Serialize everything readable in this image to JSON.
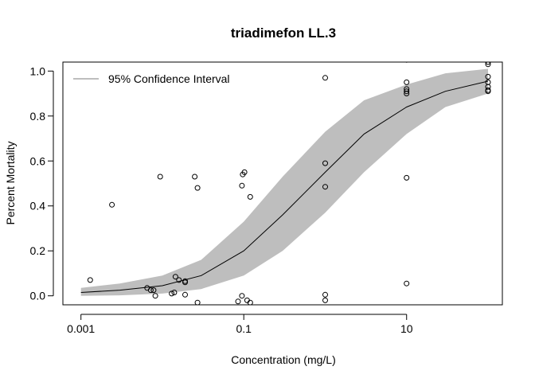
{
  "chart_data": {
    "type": "scatter",
    "title": "triadimefon LL.3",
    "xlabel": "Concentration (mg/L)",
    "ylabel": "Percent Mortality",
    "x_scale": "log10",
    "xlim": [
      0.0006,
      150
    ],
    "ylim": [
      -0.04,
      1.04
    ],
    "x_ticks": [
      0.001,
      0.1,
      10
    ],
    "x_tick_labels": [
      "0.001",
      "0.1",
      "10"
    ],
    "y_ticks": [
      0,
      0.2,
      0.4,
      0.6,
      0.8,
      1.0
    ],
    "y_tick_labels": [
      "0.0",
      "0.2",
      "0.4",
      "0.6",
      "0.8",
      "1.0"
    ],
    "legend": {
      "position": "top-left",
      "entries": [
        {
          "label": "95% Confidence Interval",
          "color": "#bebebe"
        }
      ]
    },
    "colors": {
      "band": "#bebebe",
      "curve": "#000000",
      "points": "#000000",
      "background": "#ffffff"
    },
    "points": [
      {
        "x": 0.0013,
        "y": 0.07
      },
      {
        "x": 0.0024,
        "y": 0.405
      },
      {
        "x": 0.0065,
        "y": 0.035
      },
      {
        "x": 0.0072,
        "y": 0.025
      },
      {
        "x": 0.0078,
        "y": 0.025
      },
      {
        "x": 0.0082,
        "y": 0.0
      },
      {
        "x": 0.0094,
        "y": 0.53
      },
      {
        "x": 0.013,
        "y": 0.01
      },
      {
        "x": 0.014,
        "y": 0.015
      },
      {
        "x": 0.0145,
        "y": 0.085
      },
      {
        "x": 0.016,
        "y": 0.07
      },
      {
        "x": 0.019,
        "y": 0.06
      },
      {
        "x": 0.019,
        "y": 0.065
      },
      {
        "x": 0.019,
        "y": 0.005
      },
      {
        "x": 0.025,
        "y": 0.53
      },
      {
        "x": 0.027,
        "y": 0.48
      },
      {
        "x": 0.027,
        "y": -0.03
      },
      {
        "x": 0.085,
        "y": -0.025
      },
      {
        "x": 0.095,
        "y": 0.0
      },
      {
        "x": 0.095,
        "y": 0.49
      },
      {
        "x": 0.097,
        "y": 0.54
      },
      {
        "x": 0.102,
        "y": 0.55
      },
      {
        "x": 0.11,
        "y": -0.02
      },
      {
        "x": 0.12,
        "y": 0.44
      },
      {
        "x": 0.12,
        "y": -0.03
      },
      {
        "x": 1.0,
        "y": 0.97
      },
      {
        "x": 1.0,
        "y": 0.59
      },
      {
        "x": 1.0,
        "y": 0.485
      },
      {
        "x": 1.0,
        "y": 0.005
      },
      {
        "x": 1.0,
        "y": -0.02
      },
      {
        "x": 10,
        "y": 1.05
      },
      {
        "x": 10,
        "y": 0.95
      },
      {
        "x": 10,
        "y": 0.92
      },
      {
        "x": 10,
        "y": 0.91
      },
      {
        "x": 10,
        "y": 0.9
      },
      {
        "x": 10,
        "y": 0.525
      },
      {
        "x": 10,
        "y": 0.055
      },
      {
        "x": 100,
        "y": 1.04
      },
      {
        "x": 100,
        "y": 1.03
      },
      {
        "x": 100,
        "y": 0.975
      },
      {
        "x": 100,
        "y": 0.95
      },
      {
        "x": 100,
        "y": 0.93
      },
      {
        "x": 100,
        "y": 0.915
      },
      {
        "x": 100,
        "y": 0.91
      }
    ],
    "fitted_curve": {
      "x": [
        0.001,
        0.003,
        0.01,
        0.03,
        0.1,
        0.3,
        1,
        3,
        10,
        30,
        100
      ],
      "y": [
        0.015,
        0.025,
        0.045,
        0.09,
        0.2,
        0.36,
        0.55,
        0.72,
        0.84,
        0.91,
        0.955
      ]
    },
    "confidence_band": {
      "x": [
        0.001,
        0.003,
        0.01,
        0.03,
        0.1,
        0.3,
        1,
        3,
        10,
        30,
        100
      ],
      "lower": [
        0.0,
        0.002,
        0.01,
        0.03,
        0.09,
        0.2,
        0.37,
        0.55,
        0.72,
        0.84,
        0.9
      ],
      "upper": [
        0.035,
        0.055,
        0.09,
        0.16,
        0.33,
        0.53,
        0.73,
        0.87,
        0.94,
        0.99,
        1.01
      ]
    }
  }
}
